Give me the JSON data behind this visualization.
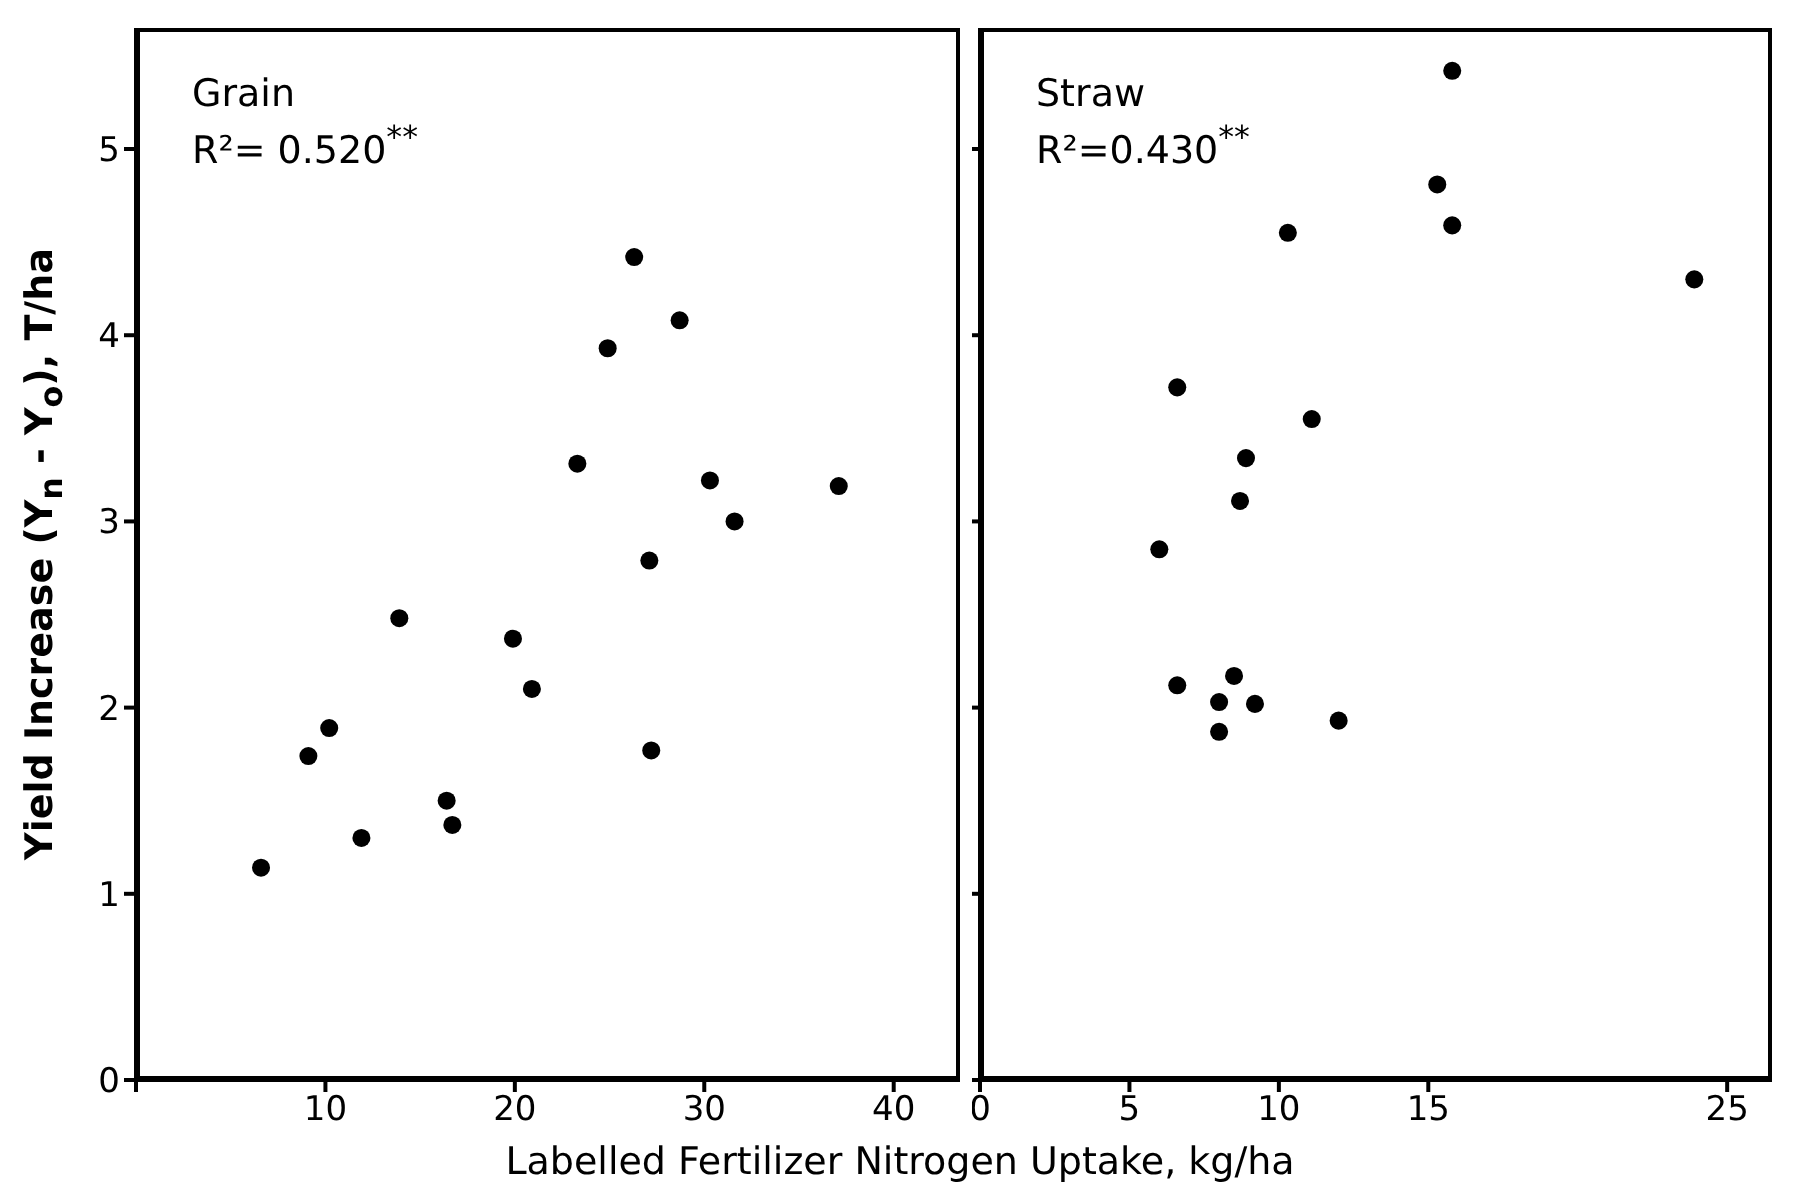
{
  "chart_data": [
    {
      "type": "scatter",
      "annotations": [
        "Grain",
        "R²= 0.520$^{**}$"
      ],
      "xlabel": "Labelled Fertilizer Nitrogen Uptake, kg/ha",
      "ylabel": "Yield Increase (Y$_{n}$ - Y$_{o}$), T/ha",
      "marker": "circle",
      "color": "#000000",
      "x": [
        26.3,
        28.7,
        24.9,
        23.3,
        30.3,
        37.1,
        31.6,
        27.1,
        13.9,
        19.9,
        20.9,
        10.2,
        9.1,
        27.2,
        16.4,
        16.7,
        11.9,
        6.6
      ],
      "values": [
        4.42,
        4.08,
        3.93,
        3.31,
        3.22,
        3.19,
        3.0,
        2.79,
        2.48,
        2.37,
        2.1,
        1.89,
        1.74,
        1.77,
        1.5,
        1.37,
        1.3,
        1.14
      ],
      "xlim": [
        0,
        43.5
      ],
      "xticks": [
        {
          "value": 0,
          "label": null
        },
        10,
        20,
        30,
        40
      ],
      "ylim": [
        0,
        5.65
      ],
      "yticks": [
        0,
        1,
        2,
        3,
        4,
        5
      ]
    },
    {
      "type": "scatter",
      "annotations": [
        "Straw",
        "R²=0.430$^{**}$"
      ],
      "marker": "circle",
      "color": "#000000",
      "tick_labels": "x",
      "x": [
        15.8,
        15.3,
        15.8,
        23.9,
        10.3,
        6.6,
        11.1,
        8.9,
        8.7,
        6.0,
        6.6,
        8.5,
        8.0,
        9.2,
        8.0,
        12.0
      ],
      "values": [
        5.42,
        4.81,
        4.59,
        4.3,
        4.55,
        3.72,
        3.55,
        3.34,
        3.11,
        2.85,
        2.12,
        2.17,
        2.03,
        2.02,
        1.87,
        1.93
      ],
      "xlim": [
        0,
        26.5
      ],
      "xticks": [
        0,
        5,
        10,
        15,
        25
      ],
      "ylim": [
        0,
        5.65
      ],
      "yticks": [
        {
          "value": 0,
          "label": null
        },
        {
          "value": 1,
          "label": null
        },
        {
          "value": 2,
          "label": null
        },
        {
          "value": 3,
          "label": null
        },
        {
          "value": 4,
          "label": null
        },
        {
          "value": 5,
          "label": null
        }
      ]
    }
  ]
}
